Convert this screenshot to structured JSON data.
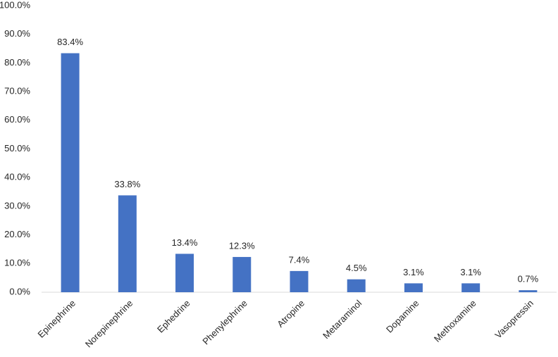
{
  "chart_data": {
    "type": "bar",
    "categories": [
      "Epinephrine",
      "Norepinephrine",
      "Ephedrine",
      "Phenylephrine",
      "Atropine",
      "Metaraminol",
      "Dopamine",
      "Methoxamine",
      "Vasopressin"
    ],
    "values": [
      83.4,
      33.8,
      13.4,
      12.3,
      7.4,
      4.5,
      3.1,
      3.1,
      0.7
    ],
    "value_labels": [
      "83.4%",
      "33.8%",
      "13.4%",
      "12.3%",
      "7.4%",
      "4.5%",
      "3.1%",
      "3.1%",
      "0.7%"
    ],
    "color": "#4472c4",
    "ylim": [
      0,
      100
    ],
    "yticks": [
      {
        "value": 0,
        "label": "0.0%"
      },
      {
        "value": 10,
        "label": "10.0%"
      },
      {
        "value": 20,
        "label": "20.0%"
      },
      {
        "value": 30,
        "label": "30.0%"
      },
      {
        "value": 40,
        "label": "40.0%"
      },
      {
        "value": 50,
        "label": "50.0%"
      },
      {
        "value": 60,
        "label": "60.0%"
      },
      {
        "value": 70,
        "label": "70.0%"
      },
      {
        "value": 80,
        "label": "80.0%"
      },
      {
        "value": 90,
        "label": "90.0%"
      },
      {
        "value": 100,
        "label": "100.0%"
      }
    ],
    "grid": false
  }
}
